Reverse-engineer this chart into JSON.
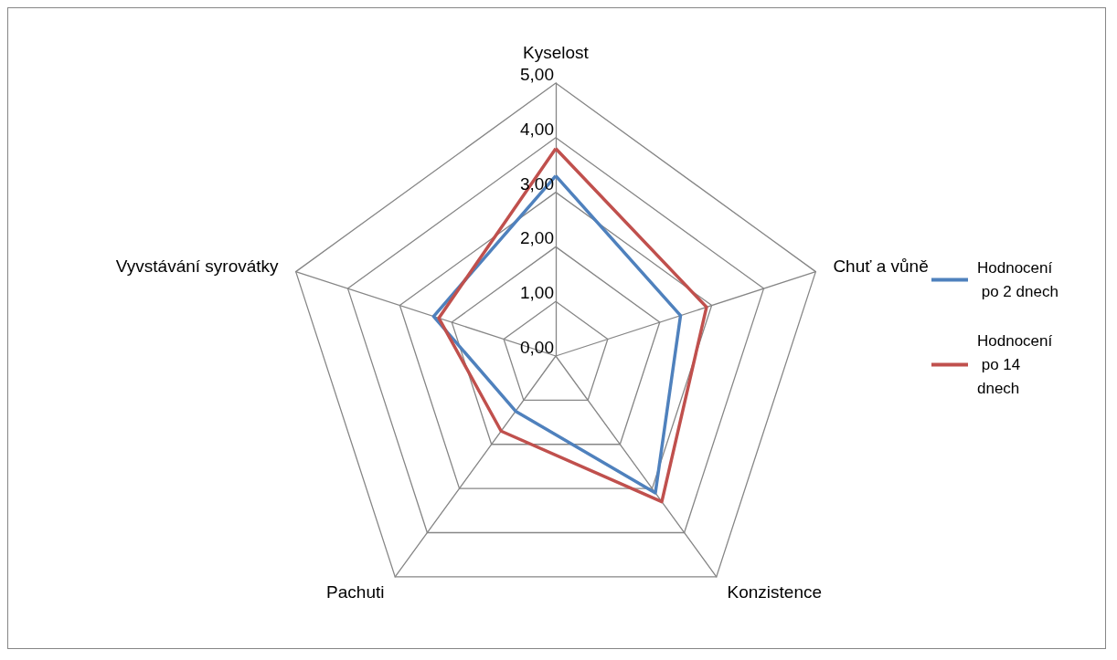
{
  "chart_data": {
    "type": "radar",
    "categories": [
      "Kyselost",
      "Chuť a vůně",
      "Konzistence",
      "Pachuti",
      "Vyvstávání syrovátky"
    ],
    "series": [
      {
        "name": "Hodnocení po 2 dnech",
        "color": "#4f81bd",
        "values": [
          3.3,
          2.4,
          3.1,
          1.25,
          2.35
        ]
      },
      {
        "name": "Hodnocení po 14 dnech",
        "color": "#c0504d",
        "values": [
          3.8,
          2.9,
          3.3,
          1.7,
          2.25
        ]
      }
    ],
    "ylim": [
      0,
      5
    ],
    "yticks": [
      {
        "value": 0,
        "label": "0,00"
      },
      {
        "value": 1,
        "label": "1,00"
      },
      {
        "value": 2,
        "label": "2,00"
      },
      {
        "value": 3,
        "label": "3,00"
      },
      {
        "value": 4,
        "label": "4,00"
      },
      {
        "value": 5,
        "label": "5,00"
      }
    ],
    "grid": true,
    "legend": "right",
    "marker": "none",
    "line_style": "solid"
  }
}
